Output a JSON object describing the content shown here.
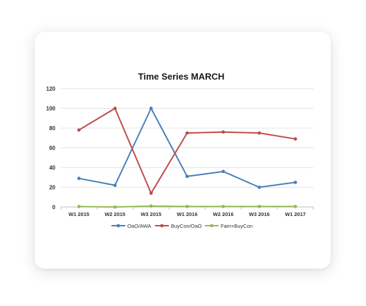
{
  "chart_data": {
    "type": "line",
    "title": "Time Series MARCH",
    "xlabel": "",
    "ylabel": "",
    "categories": [
      "W1 2015",
      "W2 2015",
      "W3 2015",
      "W1 2016",
      "W2 2016",
      "W3 2016",
      "W1 2017"
    ],
    "ylim": [
      0,
      120
    ],
    "yticks": [
      0,
      20,
      40,
      60,
      80,
      100,
      120
    ],
    "grid": true,
    "legend": "bottom",
    "series": [
      {
        "name": "OaO/AWA",
        "color": "#4a7ebb",
        "values": [
          29,
          22,
          100,
          31,
          36,
          20,
          25
        ]
      },
      {
        "name": "BuyCon/OaO",
        "color": "#be4b48",
        "values": [
          78,
          100,
          14,
          75,
          76,
          75,
          69
        ]
      },
      {
        "name": "Fam+BuyCon",
        "color": "#98b954",
        "values": [
          0.5,
          0,
          1,
          0.5,
          0.5,
          0.5,
          0.5
        ]
      }
    ]
  }
}
